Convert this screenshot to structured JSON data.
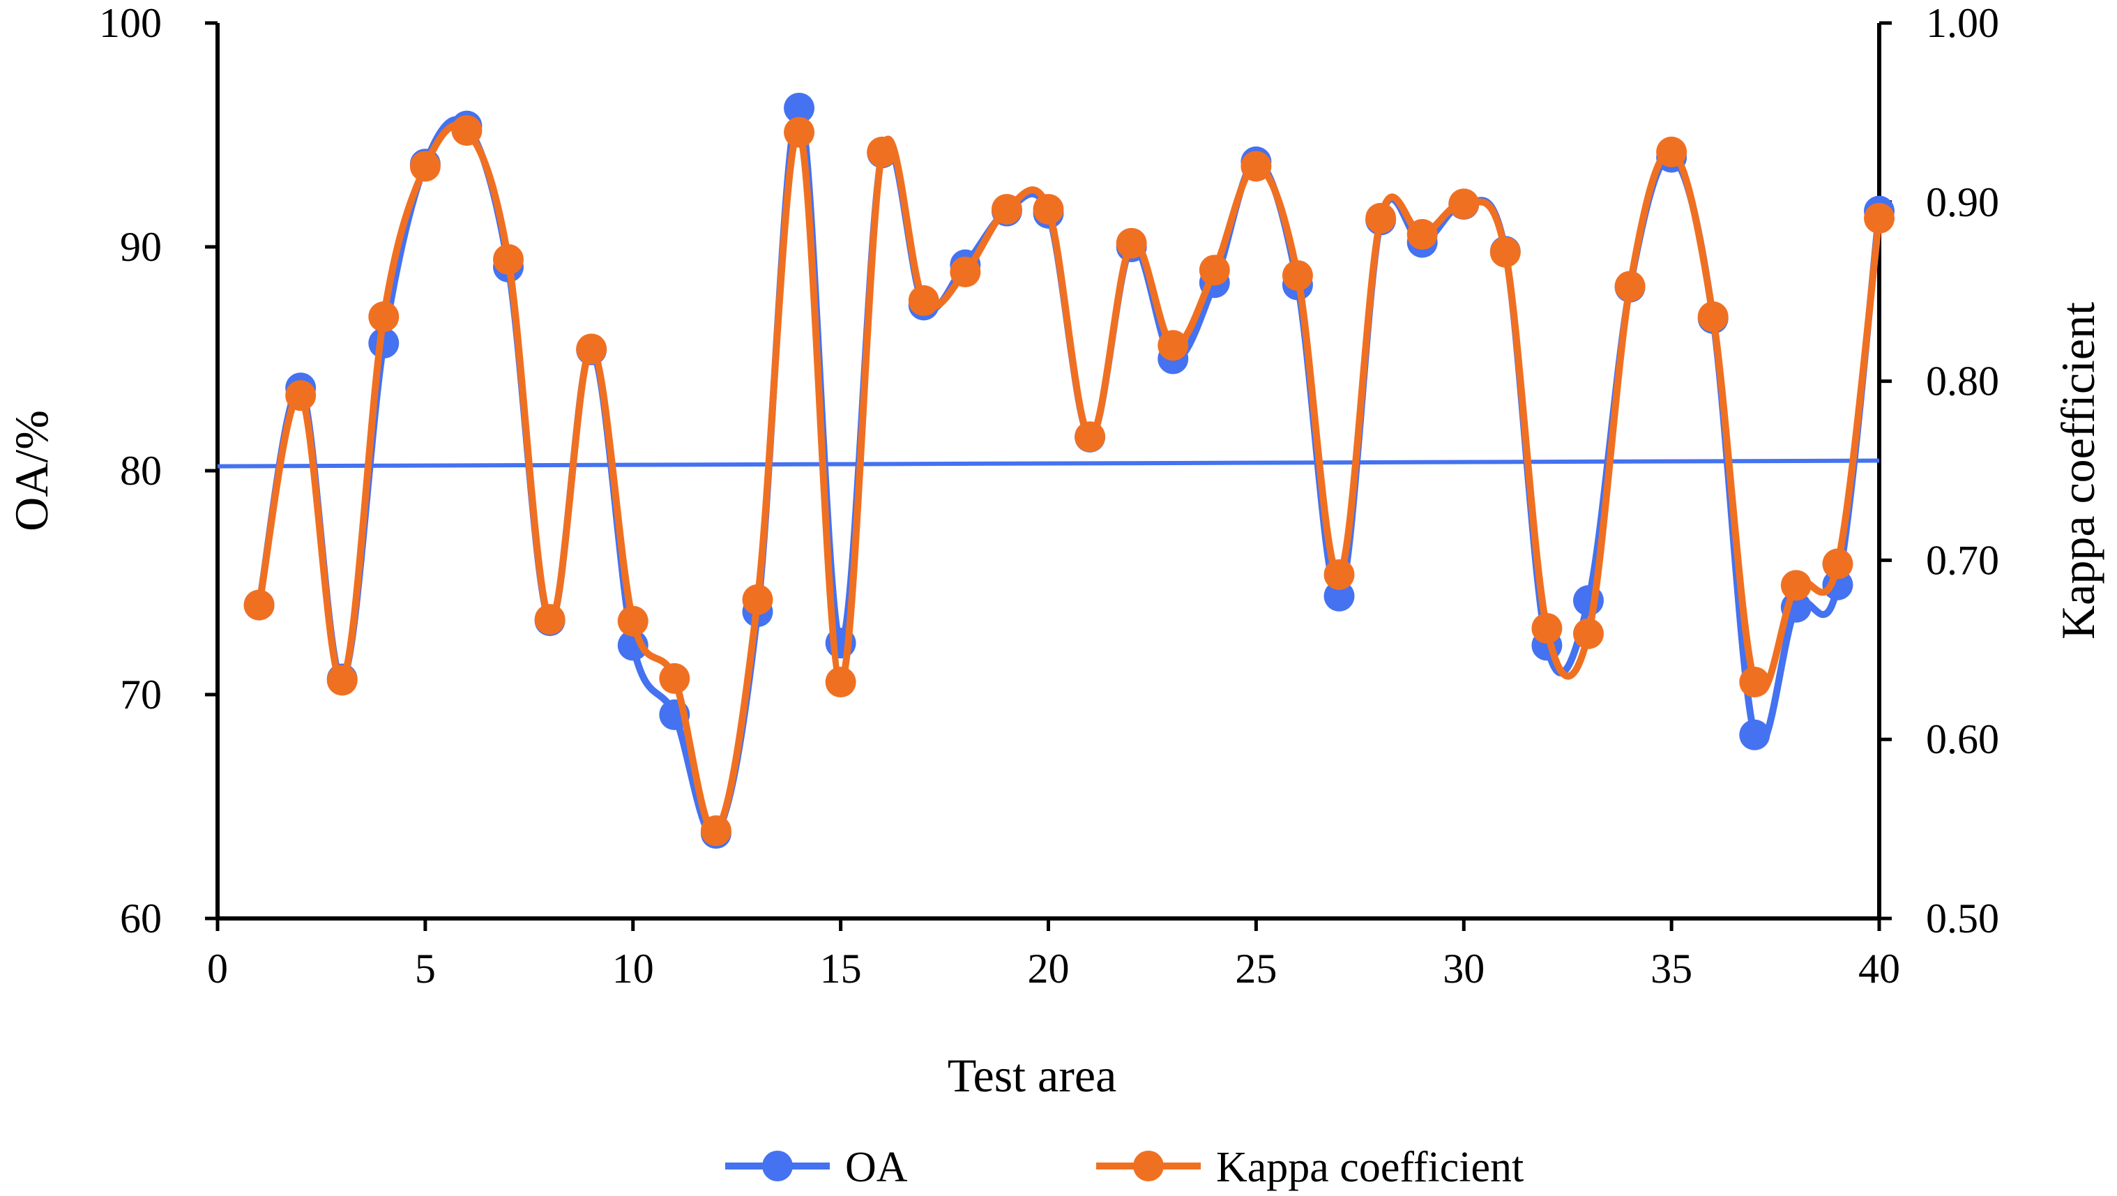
{
  "chart_data": {
    "type": "line",
    "title": "",
    "xlabel": "Test area",
    "ylabel_left": "OA/%",
    "ylabel_right": "Kappa coefficient",
    "xlim": [
      0,
      40
    ],
    "ylim_left": [
      60,
      100
    ],
    "ylim_right": [
      0.5,
      1.0
    ],
    "x_ticks": [
      "0",
      "5",
      "10",
      "15",
      "20",
      "25",
      "30",
      "35",
      "40"
    ],
    "y_left_ticks": [
      "60",
      "70",
      "80",
      "90",
      "100"
    ],
    "y_right_ticks": [
      "0.50",
      "0.60",
      "0.70",
      "0.80",
      "0.90",
      "1.00"
    ],
    "x": [
      1,
      2,
      3,
      4,
      5,
      6,
      7,
      8,
      9,
      10,
      11,
      12,
      13,
      14,
      15,
      16,
      17,
      18,
      19,
      20,
      21,
      22,
      23,
      24,
      25,
      26,
      27,
      28,
      29,
      30,
      31,
      32,
      33,
      34,
      35,
      36,
      37,
      38,
      39,
      40
    ],
    "series": [
      {
        "name": "OA",
        "axis": "left",
        "color": "#4472F0",
        "values": [
          74.0,
          83.7,
          70.7,
          85.7,
          93.7,
          95.4,
          89.1,
          73.3,
          85.4,
          72.2,
          69.1,
          63.8,
          73.7,
          96.2,
          72.3,
          94.2,
          87.4,
          89.2,
          91.6,
          91.5,
          81.5,
          90.0,
          85.0,
          88.4,
          93.8,
          88.3,
          74.4,
          91.2,
          90.2,
          91.9,
          89.8,
          72.2,
          74.2,
          88.2,
          94.0,
          86.8,
          68.2,
          73.9,
          74.9,
          91.6
        ]
      },
      {
        "name": "Kappa coefficient",
        "axis": "right",
        "color": "#F07022",
        "values": [
          0.675,
          0.792,
          0.633,
          0.836,
          0.92,
          0.94,
          0.868,
          0.667,
          0.818,
          0.666,
          0.634,
          0.549,
          0.678,
          0.939,
          0.632,
          0.928,
          0.845,
          0.861,
          0.896,
          0.896,
          0.769,
          0.877,
          0.82,
          0.862,
          0.92,
          0.859,
          0.692,
          0.891,
          0.882,
          0.899,
          0.872,
          0.662,
          0.659,
          0.853,
          0.928,
          0.836,
          0.632,
          0.686,
          0.698,
          0.891
        ]
      },
      {
        "name": "mean line",
        "axis": "left",
        "color": "#4472F0",
        "x": [
          0,
          40
        ],
        "values": [
          80.2,
          80.45
        ]
      }
    ],
    "legend": {
      "position": "bottom-center",
      "entries": [
        "OA",
        "Kappa coefficient"
      ]
    },
    "grid": false
  }
}
